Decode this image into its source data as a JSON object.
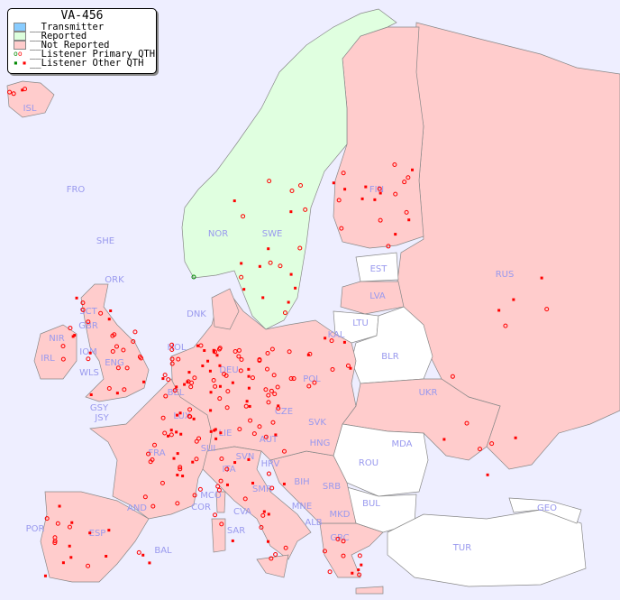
{
  "legend": {
    "title": "VA-456",
    "items": [
      {
        "label": "__Transmitter",
        "color": "#88ccff"
      },
      {
        "label": "__Reported",
        "color": "#ddffdd"
      },
      {
        "label": "__Not Reported",
        "color": "#ffcccc"
      },
      {
        "label": "__Listener Primary QTH",
        "marker": "open-circle"
      },
      {
        "label": "__Listener Other QTH",
        "marker": "filled-square"
      }
    ]
  },
  "colors": {
    "sea": "#eeeeff",
    "reported": "#e0ffe0",
    "not_reported": "#ffcccc",
    "no_data": "#ffffff",
    "listener": "#ff0000",
    "listener_reported": "#008800",
    "label": "#9999ee"
  },
  "countries": [
    "ISL",
    "FRO",
    "SHE",
    "ORK",
    "NOR",
    "SWE",
    "FIN",
    "RUS",
    "EST",
    "LVA",
    "LTU",
    "KAL",
    "BLR",
    "DNK",
    "HOL",
    "DEU",
    "POL",
    "UKR",
    "IRL",
    "GBR",
    "NIR",
    "SCT",
    "IOM",
    "WLS",
    "ENG",
    "GSY",
    "JSY",
    "BEL",
    "LUX",
    "CZE",
    "SVK",
    "MDA",
    "ROU",
    "HNG",
    "AUT",
    "LIE",
    "SUI",
    "FRA",
    "SVN",
    "HRV",
    "BIH",
    "SRB",
    "ITA",
    "MCO",
    "COR",
    "CVA",
    "SMR",
    "MNE",
    "ALB",
    "MKD",
    "BUL",
    "GRC",
    "GEO",
    "TUR",
    "AND",
    "ESP",
    "POR",
    "SAR",
    "BAL"
  ]
}
